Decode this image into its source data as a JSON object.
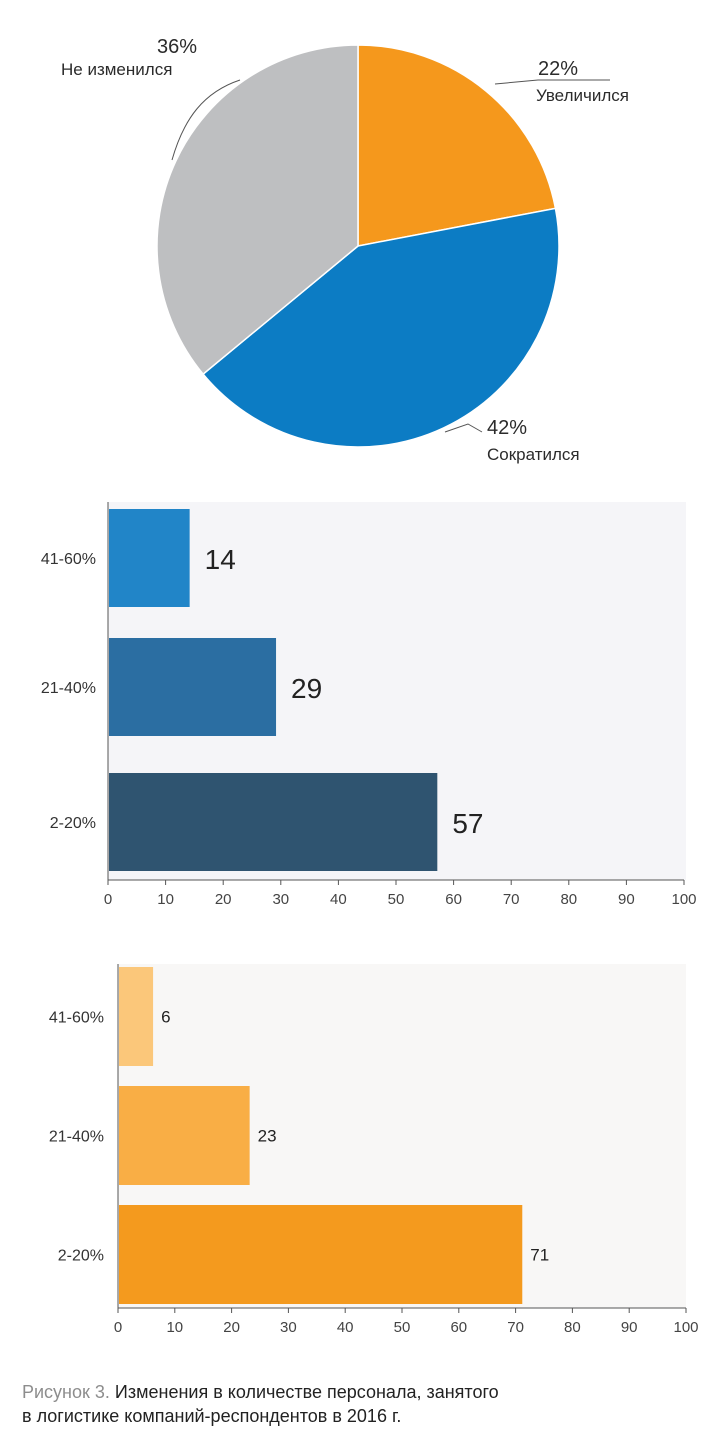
{
  "chart_data": [
    {
      "type": "pie",
      "slices": [
        {
          "label": "Увеличился",
          "value": 22,
          "value_label": "22%",
          "color": "#F5981C"
        },
        {
          "label": "Сократился",
          "value": 42,
          "value_label": "42%",
          "color": "#0C7CC4"
        },
        {
          "label": "Не изменился",
          "value": 36,
          "value_label": "36%",
          "color": "#BEBFC1"
        }
      ]
    },
    {
      "type": "bar",
      "orientation": "horizontal",
      "categories": [
        "41-60%",
        "21-40%",
        "2-20%"
      ],
      "values": [
        14,
        29,
        57
      ],
      "colors": [
        "#2185C8",
        "#2B6EA2",
        "#2F5470"
      ],
      "xlim": [
        0,
        100
      ],
      "xticks": [
        0,
        10,
        20,
        30,
        40,
        50,
        60,
        70,
        80,
        90,
        100
      ]
    },
    {
      "type": "bar",
      "orientation": "horizontal",
      "categories": [
        "41-60%",
        "21-40%",
        "2-20%"
      ],
      "values": [
        6,
        23,
        71
      ],
      "colors": [
        "#FBC77A",
        "#F9AE45",
        "#F49A1E"
      ],
      "xlim": [
        0,
        100
      ],
      "xticks": [
        0,
        10,
        20,
        30,
        40,
        50,
        60,
        70,
        80,
        90,
        100
      ]
    }
  ],
  "caption": {
    "number": "Рисунок 3.",
    "line1": "Изменения в количестве персонала, занятого",
    "line2": "в логистике компаний-респондентов в 2016 г."
  }
}
